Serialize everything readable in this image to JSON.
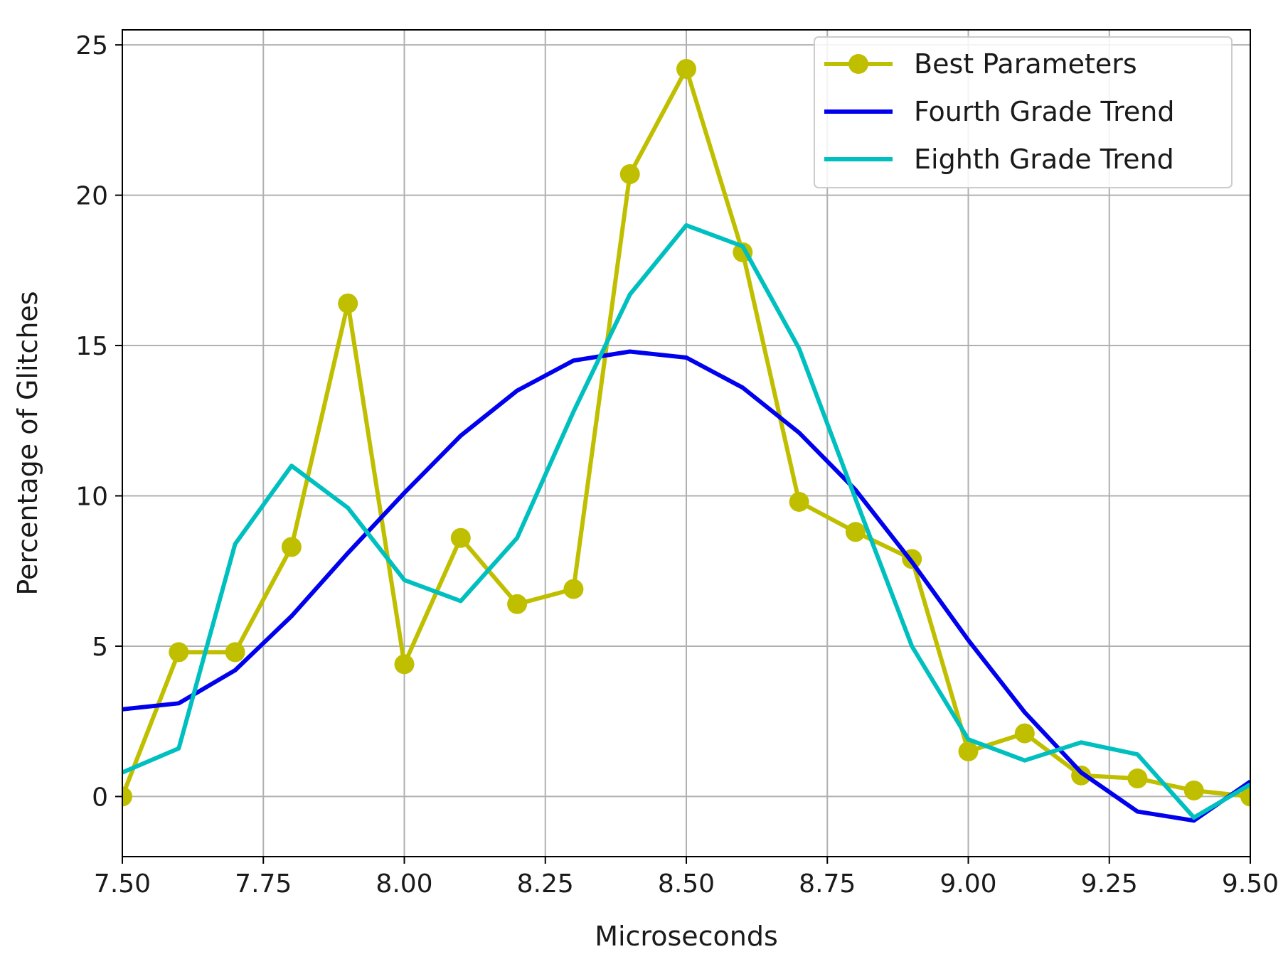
{
  "chart_data": {
    "type": "line",
    "title": "",
    "xlabel": "Microseconds",
    "ylabel": "Percentage of Glitches",
    "xlim": [
      7.5,
      9.5
    ],
    "ylim": [
      -2,
      25.5
    ],
    "xticks": [
      7.5,
      7.75,
      8.0,
      8.25,
      8.5,
      8.75,
      9.0,
      9.25,
      9.5
    ],
    "xtick_labels": [
      "7.50",
      "7.75",
      "8.00",
      "8.25",
      "8.50",
      "8.75",
      "9.00",
      "9.25",
      "9.50"
    ],
    "yticks": [
      0,
      5,
      10,
      15,
      20,
      25
    ],
    "ytick_labels": [
      "0",
      "5",
      "10",
      "15",
      "20",
      "25"
    ],
    "grid": true,
    "legend_position": "top-right",
    "series": [
      {
        "name": "Best Parameters",
        "color": "#bfbf00",
        "marker": "circle",
        "x": [
          7.5,
          7.6,
          7.7,
          7.8,
          7.9,
          8.0,
          8.1,
          8.2,
          8.3,
          8.4,
          8.5,
          8.6,
          8.7,
          8.8,
          8.9,
          9.0,
          9.1,
          9.2,
          9.3,
          9.4,
          9.5
        ],
        "y": [
          0.0,
          4.8,
          4.8,
          8.3,
          16.4,
          4.4,
          8.6,
          6.4,
          6.9,
          20.7,
          24.2,
          18.1,
          9.8,
          8.8,
          7.9,
          1.5,
          2.1,
          0.7,
          0.6,
          0.2,
          0.0
        ]
      },
      {
        "name": "Fourth Grade Trend",
        "color": "#0000ee",
        "marker": "none",
        "x": [
          7.5,
          7.6,
          7.7,
          7.8,
          7.9,
          8.0,
          8.1,
          8.2,
          8.3,
          8.4,
          8.5,
          8.6,
          8.7,
          8.8,
          8.9,
          9.0,
          9.1,
          9.2,
          9.3,
          9.4,
          9.5
        ],
        "y": [
          2.9,
          3.1,
          4.2,
          6.0,
          8.1,
          10.1,
          12.0,
          13.5,
          14.5,
          14.8,
          14.6,
          13.6,
          12.1,
          10.2,
          7.8,
          5.2,
          2.8,
          0.8,
          -0.5,
          -0.8,
          0.5
        ]
      },
      {
        "name": "Eighth Grade Trend",
        "color": "#00bfbf",
        "marker": "none",
        "x": [
          7.5,
          7.6,
          7.7,
          7.8,
          7.9,
          8.0,
          8.1,
          8.2,
          8.3,
          8.4,
          8.5,
          8.6,
          8.7,
          8.8,
          8.9,
          9.0,
          9.1,
          9.2,
          9.3,
          9.4,
          9.5
        ],
        "y": [
          0.8,
          1.6,
          8.4,
          11.0,
          9.6,
          7.2,
          6.5,
          8.6,
          12.8,
          16.7,
          19.0,
          18.3,
          14.9,
          9.9,
          5.0,
          1.9,
          1.2,
          1.8,
          1.4,
          -0.7,
          0.4
        ]
      }
    ]
  }
}
